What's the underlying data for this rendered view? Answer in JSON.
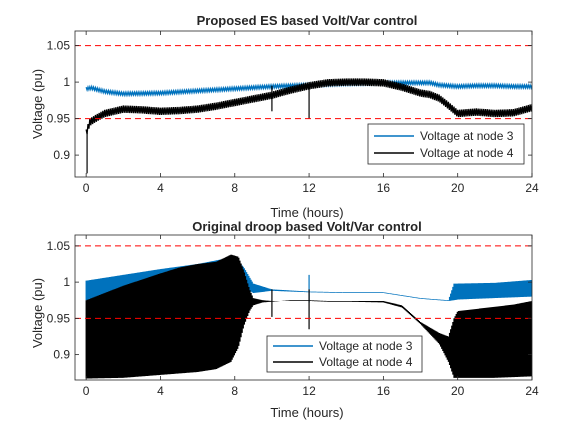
{
  "chart_data": [
    {
      "type": "line",
      "title": "Proposed ES based Volt/Var control",
      "xlabel": "Time (hours)",
      "ylabel": "Voltage (pu)",
      "xlim": [
        -0.6,
        24
      ],
      "ylim": [
        0.87,
        1.07
      ],
      "xticks": [
        "0",
        "4",
        "8",
        "12",
        "16",
        "20",
        "24"
      ],
      "yticks": [
        "0.9",
        "0.95",
        "1",
        "1.05"
      ],
      "grid": false,
      "legend_position": "bottom-right",
      "reference_lines": [
        1.05,
        0.95
      ],
      "series": [
        {
          "name": "Voltage at node 3",
          "color": "#0072BD",
          "x": [
            0,
            0.3,
            1,
            2,
            4,
            6,
            8,
            10,
            12,
            14,
            16,
            17,
            18,
            18.5,
            19,
            20,
            21,
            22,
            23,
            24
          ],
          "y": [
            0.991,
            0.992,
            0.987,
            0.984,
            0.985,
            0.988,
            0.991,
            0.994,
            0.996,
            0.998,
            0.999,
            0.999,
            0.999,
            0.999,
            0.996,
            0.994,
            0.995,
            0.995,
            0.994,
            0.994
          ],
          "band": 0.002
        },
        {
          "name": "Voltage at node 4",
          "color": "#000000",
          "x": [
            0,
            0.2,
            0.5,
            1,
            2,
            3,
            4,
            5,
            6,
            7,
            8,
            9,
            10,
            11,
            12,
            13,
            14,
            15,
            16,
            17,
            18,
            18.5,
            19,
            19.5,
            20,
            21,
            22,
            23,
            24
          ],
          "y": [
            0.93,
            0.945,
            0.95,
            0.957,
            0.963,
            0.962,
            0.96,
            0.961,
            0.963,
            0.967,
            0.972,
            0.977,
            0.982,
            0.989,
            0.995,
            0.999,
            1.0,
            1.0,
            0.999,
            0.993,
            0.985,
            0.983,
            0.978,
            0.968,
            0.957,
            0.959,
            0.957,
            0.958,
            0.965
          ],
          "band": 0.005,
          "spikes": [
            {
              "x": 0.05,
              "y0": 0.875,
              "y1": 0.93
            },
            {
              "x": 10,
              "y0": 0.96,
              "y1": 0.995
            },
            {
              "x": 12,
              "y0": 0.95,
              "y1": 1.0
            }
          ]
        }
      ]
    },
    {
      "type": "line",
      "title": "Original droop based Volt/Var control",
      "xlabel": "Time (hours)",
      "ylabel": "Voltage (pu)",
      "xlim": [
        -0.6,
        24
      ],
      "ylim": [
        0.865,
        1.065
      ],
      "xticks": [
        "0",
        "4",
        "8",
        "12",
        "16",
        "20",
        "24"
      ],
      "yticks": [
        "0.9",
        "0.95",
        "1",
        "1.05"
      ],
      "grid": false,
      "legend_position": "bottom-center",
      "reference_lines": [
        1.05,
        0.95
      ],
      "series": [
        {
          "name": "Voltage at node 3",
          "color": "#0072BD",
          "x": [
            0,
            2,
            4,
            6,
            8,
            8.5,
            9,
            10,
            12,
            14,
            16,
            18,
            19,
            19.5,
            19.8,
            20,
            22,
            24
          ],
          "upper": [
            1.002,
            1.01,
            1.018,
            1.025,
            1.035,
            1.02,
            0.998,
            0.99,
            0.987,
            0.986,
            0.986,
            0.978,
            0.976,
            0.975,
            0.998,
            0.998,
            0.999,
            1.003
          ],
          "lower": [
            0.975,
            0.982,
            0.99,
            1.0,
            1.005,
            0.992,
            0.985,
            0.988,
            0.986,
            0.985,
            0.985,
            0.977,
            0.975,
            0.974,
            0.975,
            0.976,
            0.978,
            0.98
          ],
          "spikes": [
            {
              "x": 12,
              "y0": 0.972,
              "y1": 1.01
            }
          ]
        },
        {
          "name": "Voltage at node 4",
          "color": "#000000",
          "x": [
            0,
            2,
            4,
            5,
            6,
            7,
            7.8,
            8.2,
            8.5,
            8.8,
            9,
            9.5,
            10,
            10.5,
            11,
            12,
            13,
            14,
            16,
            17,
            18,
            19,
            19.5,
            19.8,
            20,
            21,
            22,
            23,
            24
          ],
          "upper": [
            0.975,
            0.995,
            1.012,
            1.02,
            1.025,
            1.028,
            1.038,
            1.035,
            1.015,
            0.99,
            0.978,
            0.975,
            0.974,
            0.974,
            0.975,
            0.975,
            0.974,
            0.974,
            0.974,
            0.968,
            0.945,
            0.93,
            0.925,
            0.95,
            0.96,
            0.963,
            0.966,
            0.969,
            0.974
          ],
          "lower": [
            0.867,
            0.868,
            0.872,
            0.874,
            0.876,
            0.88,
            0.89,
            0.91,
            0.94,
            0.96,
            0.968,
            0.972,
            0.973,
            0.974,
            0.974,
            0.974,
            0.973,
            0.973,
            0.972,
            0.965,
            0.942,
            0.915,
            0.89,
            0.868,
            0.868,
            0.868,
            0.868,
            0.869,
            0.87
          ],
          "spikes": [
            {
              "x": 10,
              "y0": 0.952,
              "y1": 0.99
            },
            {
              "x": 12,
              "y0": 0.935,
              "y1": 0.99
            }
          ]
        }
      ]
    }
  ]
}
